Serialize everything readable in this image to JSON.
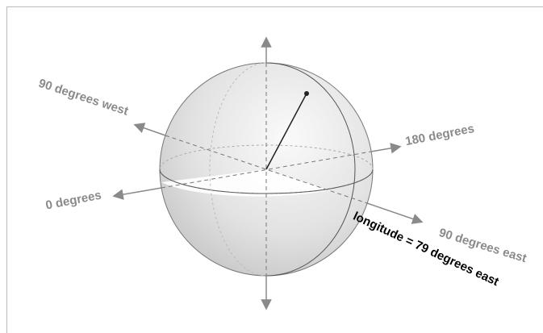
{
  "labels": {
    "west": "90 degrees west",
    "antimeridian": "180 degrees",
    "prime": "0 degrees",
    "east": "90 degrees east",
    "longitude": "longitude = 79 degrees east"
  }
}
